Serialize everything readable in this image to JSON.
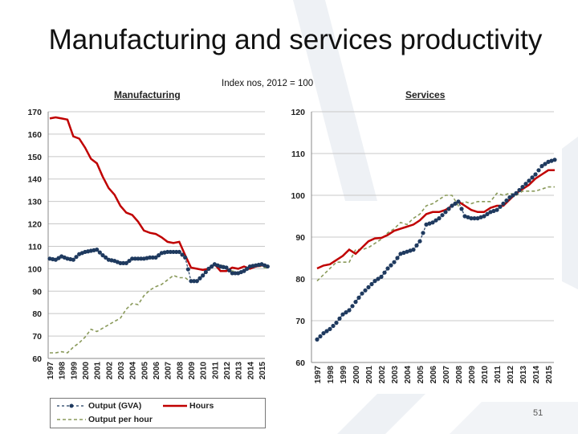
{
  "slide": {
    "title": "Manufacturing and services productivity",
    "subtitle": "Index nos, 2012 = 100",
    "page_number": "51"
  },
  "legend": {
    "gva": "Output (GVA)",
    "hours": "Hours",
    "oph": "Output per hour"
  },
  "colors": {
    "gva": "#1f3a5f",
    "hours": "#c00000",
    "oph": "#8a9a5b"
  },
  "chart_data": [
    {
      "type": "line",
      "title": "Manufacturing",
      "ylim": [
        60,
        170
      ],
      "yticks": [
        60,
        70,
        80,
        90,
        100,
        110,
        120,
        130,
        140,
        150,
        160,
        170
      ],
      "xticks": [
        "1997",
        "1998",
        "1999",
        "2000",
        "2001",
        "2002",
        "2003",
        "2004",
        "2005",
        "2006",
        "2007",
        "2008",
        "2009",
        "2010",
        "2011",
        "2012",
        "2013",
        "2014",
        "2015"
      ],
      "grid": true,
      "legend_position": "bottom",
      "x": [
        1997,
        1997.5,
        1998,
        1998.5,
        1999,
        1999.5,
        2000,
        2000.5,
        2001,
        2001.5,
        2002,
        2002.5,
        2003,
        2003.5,
        2004,
        2004.5,
        2005,
        2005.5,
        2006,
        2006.5,
        2007,
        2007.5,
        2008,
        2008.5,
        2009,
        2009.5,
        2010,
        2010.5,
        2011,
        2011.5,
        2012,
        2012.5,
        2013,
        2013.5,
        2014,
        2014.5,
        2015,
        2015.5
      ],
      "series": [
        {
          "name": "Output (GVA)",
          "key": "gva",
          "values": [
            104.5,
            104,
            105.5,
            104.5,
            104,
            106.5,
            107.5,
            108,
            108.5,
            106,
            104,
            103.5,
            102.5,
            102.5,
            104.5,
            104.5,
            104.5,
            105,
            105,
            107,
            107.5,
            107.5,
            107.5,
            105,
            94.5,
            94.5,
            97,
            100,
            102,
            101,
            100.5,
            98,
            98,
            99,
            101,
            101.5,
            102,
            101
          ]
        },
        {
          "name": "Hours",
          "key": "hours",
          "values": [
            167,
            167.5,
            167,
            166.5,
            159,
            158,
            154,
            149,
            147,
            141,
            136,
            133,
            128,
            125,
            124,
            121,
            117,
            116,
            115.5,
            114,
            112,
            111.5,
            112,
            106,
            100.5,
            100,
            99.5,
            100,
            102,
            99,
            99,
            100.5,
            100,
            101,
            100,
            101,
            101.5,
            101
          ]
        },
        {
          "name": "Output per hour",
          "key": "oph",
          "values": [
            62.5,
            62.5,
            63,
            62.5,
            65,
            67,
            69.5,
            73,
            72,
            73.5,
            75,
            76.5,
            78,
            82,
            84.5,
            84,
            88,
            90.5,
            92,
            93,
            95,
            97,
            96,
            96,
            94,
            94.5,
            97,
            100,
            102,
            102,
            100,
            99,
            98.5,
            99,
            100.5,
            101,
            101,
            100
          ]
        }
      ]
    },
    {
      "type": "line",
      "title": "Services",
      "ylim": [
        60,
        120
      ],
      "yticks": [
        60,
        70,
        80,
        90,
        100,
        110,
        120
      ],
      "xticks": [
        "1997",
        "1998",
        "1999",
        "2000",
        "2001",
        "2002",
        "2003",
        "2004",
        "2005",
        "2006",
        "2007",
        "2008",
        "2009",
        "2010",
        "2011",
        "2012",
        "2013",
        "2014",
        "2015"
      ],
      "grid": true,
      "x": [
        1997,
        1997.5,
        1998,
        1998.5,
        1999,
        1999.5,
        2000,
        2000.5,
        2001,
        2001.5,
        2002,
        2002.5,
        2003,
        2003.5,
        2004,
        2004.5,
        2005,
        2005.5,
        2006,
        2006.5,
        2007,
        2007.5,
        2008,
        2008.5,
        2009,
        2009.5,
        2010,
        2010.5,
        2011,
        2011.5,
        2012,
        2012.5,
        2013,
        2013.5,
        2014,
        2014.5,
        2015,
        2015.5
      ],
      "series": [
        {
          "name": "Output (GVA)",
          "key": "gva",
          "values": [
            65.5,
            67,
            68,
            69.5,
            71.5,
            72.5,
            74.5,
            76.5,
            78,
            79.5,
            80.5,
            82.5,
            84,
            86,
            86.5,
            87,
            89,
            93,
            93.5,
            94.5,
            96,
            97.5,
            98.5,
            95,
            94.5,
            94.5,
            95,
            96,
            96.5,
            98,
            99.5,
            100.5,
            102,
            103.5,
            105,
            107,
            108,
            108.5
          ]
        },
        {
          "name": "Hours",
          "key": "hours",
          "values": [
            82.5,
            83.2,
            83.5,
            84.5,
            85.5,
            87,
            86,
            87.5,
            89,
            89.7,
            89.8,
            90.5,
            91.5,
            92,
            92.5,
            93,
            94,
            95.5,
            96,
            96,
            96.5,
            97.5,
            98.5,
            97.5,
            96.5,
            96,
            96,
            97,
            97.5,
            97.5,
            99,
            100.5,
            101.5,
            102.5,
            104,
            105,
            106,
            106
          ]
        },
        {
          "name": "Output per hour",
          "key": "oph",
          "values": [
            79.5,
            81,
            82.5,
            84,
            84,
            84,
            87,
            87,
            87.5,
            88.5,
            89.5,
            91,
            92,
            93.5,
            93,
            94.5,
            95.5,
            97.5,
            98,
            99,
            100,
            100,
            97.5,
            98.5,
            98,
            98.5,
            98.5,
            98.5,
            100.5,
            100,
            100.5,
            100,
            101,
            101,
            101,
            101.5,
            102,
            102
          ]
        }
      ]
    }
  ]
}
